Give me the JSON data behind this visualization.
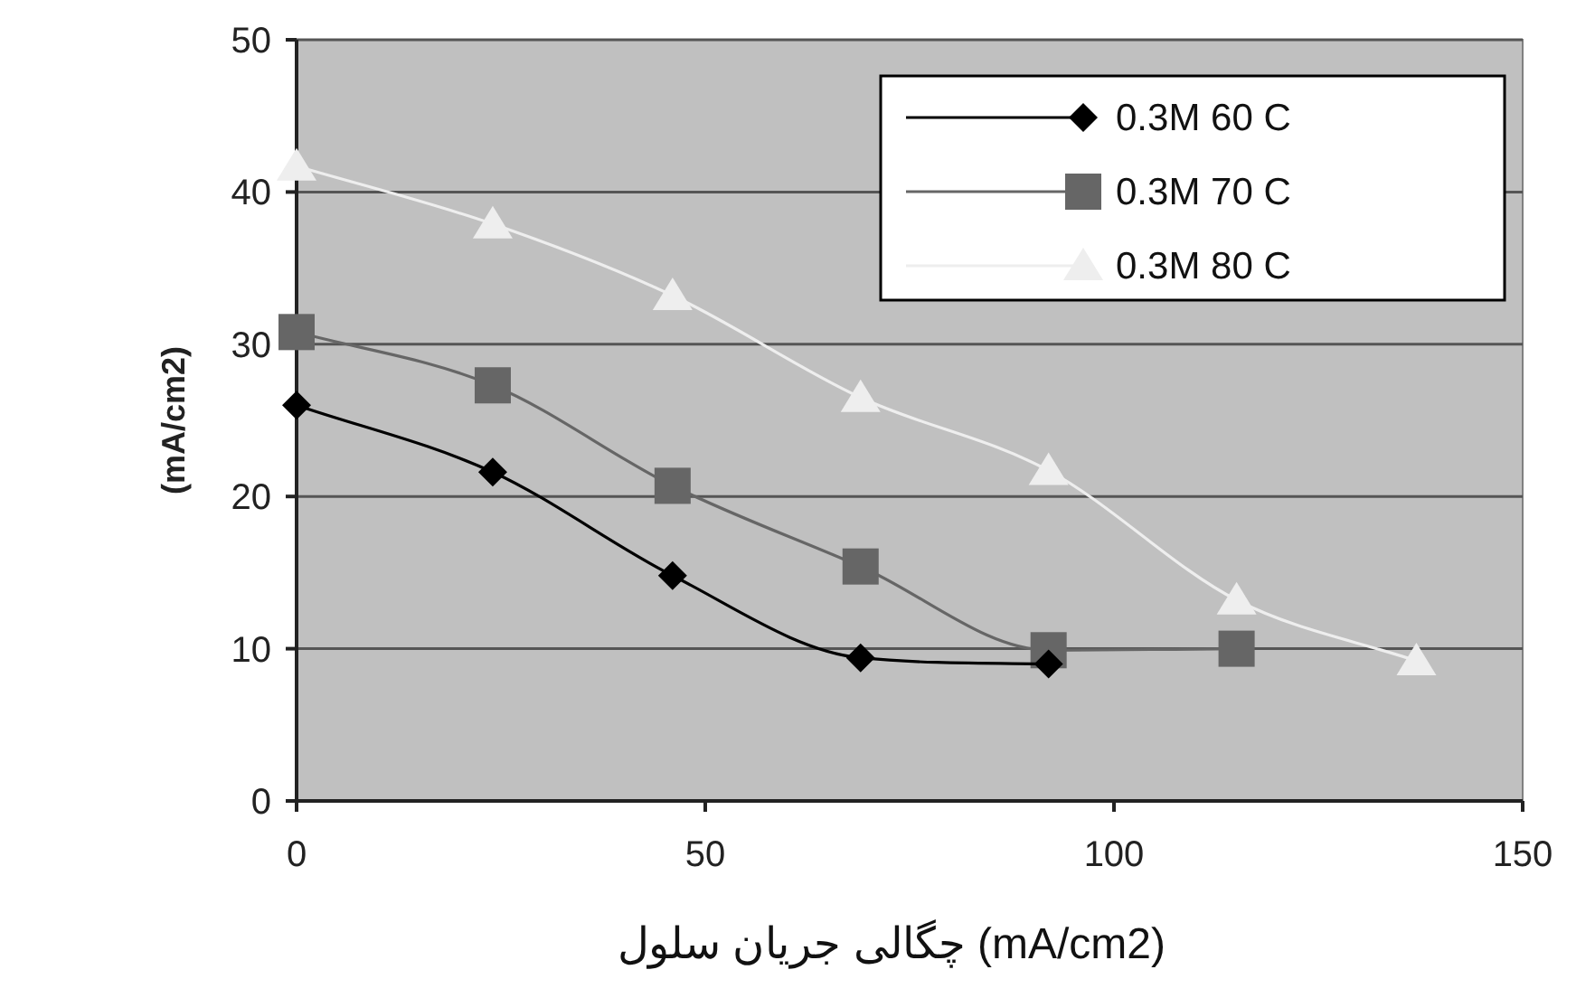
{
  "chart_data": {
    "type": "line",
    "xlabel": "چگالی جریان سلول   (mA/cm2)",
    "ylabel": "(mA/cm2)",
    "xlim": [
      0,
      150
    ],
    "xticks": [
      0,
      50,
      100,
      150
    ],
    "ylim": [
      0,
      50
    ],
    "yticks": [
      0,
      10,
      20,
      30,
      40,
      50
    ],
    "grid": "y",
    "legend": "top right",
    "x": [
      0,
      24,
      46,
      69,
      92,
      115,
      137
    ],
    "series": [
      {
        "name": "0.3M 60 C",
        "color": "#000000",
        "marker": "diamond",
        "values": [
          26.0,
          21.6,
          14.8,
          9.4,
          9.0,
          null,
          null
        ]
      },
      {
        "name": "0.3M 70 C",
        "color": "#666666",
        "marker": "square",
        "values": [
          30.8,
          27.3,
          20.7,
          15.4,
          9.9,
          10.0,
          null
        ]
      },
      {
        "name": "0.3M 80 C",
        "color": "#eeeeee",
        "marker": "triangle",
        "values": [
          41.7,
          37.9,
          33.2,
          26.5,
          21.7,
          13.2,
          9.2
        ]
      }
    ]
  }
}
